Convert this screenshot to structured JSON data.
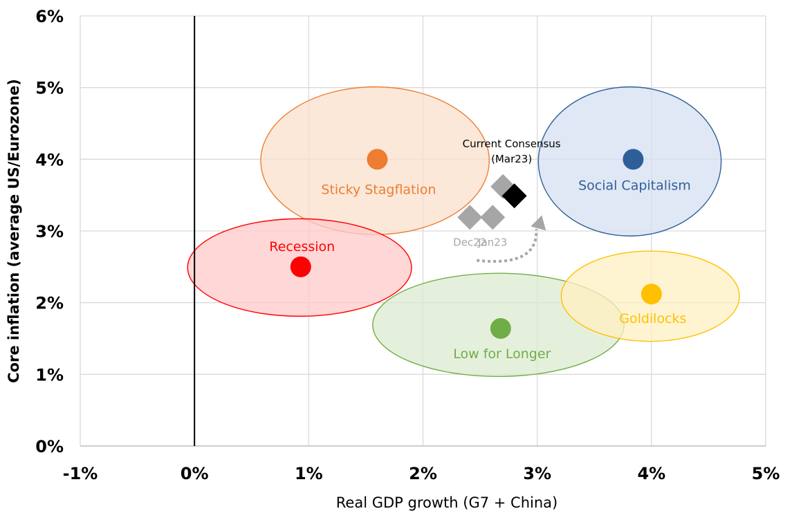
{
  "chart_data": {
    "type": "scatter",
    "title": "",
    "xlabel": "Real GDP growth (G7 + China)",
    "ylabel": "Core inflation (average US/Eurozone)",
    "xlim": [
      -1,
      5
    ],
    "ylim": [
      0,
      6
    ],
    "grid": true,
    "x_ticks": [
      -1,
      0,
      1,
      2,
      3,
      4,
      5
    ],
    "y_ticks": [
      0,
      1,
      2,
      3,
      4,
      5,
      6
    ],
    "x_tick_labels": [
      "-1%",
      "0%",
      "1%",
      "2%",
      "3%",
      "4%",
      "5%"
    ],
    "y_tick_labels": [
      "0%",
      "1%",
      "2%",
      "3%",
      "4%",
      "5%",
      "6%"
    ],
    "scenarios": [
      {
        "name": "Sticky Stagflation",
        "x": 1.6,
        "y": 4.0,
        "range_x": 1.0,
        "range_y": 1.03,
        "center_x": 1.58,
        "center_y": 3.98,
        "color": "#ED7D31",
        "fill": "#FBE0CC"
      },
      {
        "name": "Social Capitalism",
        "x": 3.84,
        "y": 4.0,
        "range_x": 0.8,
        "range_y": 1.04,
        "center_x": 3.81,
        "center_y": 3.97,
        "color": "#2F5F98",
        "fill": "#D6E0F1"
      },
      {
        "name": "Recession",
        "x": 0.93,
        "y": 2.5,
        "range_x": 0.98,
        "range_y": 0.68,
        "center_x": 0.92,
        "center_y": 2.49,
        "color": "#FF0000",
        "fill": "#FFC9C9"
      },
      {
        "name": "Low for Longer",
        "x": 2.68,
        "y": 1.64,
        "range_x": 1.1,
        "range_y": 0.72,
        "center_x": 2.66,
        "center_y": 1.69,
        "color": "#70AD47",
        "fill": "#DCEBD0"
      },
      {
        "name": "Goldilocks",
        "x": 4.0,
        "y": 2.12,
        "range_x": 0.78,
        "range_y": 0.63,
        "center_x": 3.99,
        "center_y": 2.09,
        "color": "#FFC000",
        "fill": "#FFF0C2"
      }
    ],
    "consensus_points": [
      {
        "label": "Dec22",
        "x": 2.41,
        "y": 3.19,
        "color": "#A6A6A6"
      },
      {
        "label": "Jan23",
        "x": 2.61,
        "y": 3.19,
        "color": "#A6A6A6"
      },
      {
        "label": "",
        "x": 2.7,
        "y": 3.62,
        "color": "#A6A6A6"
      },
      {
        "label": "Current Consensus (Mar23)",
        "label_lines": [
          "Current Consensus",
          "(Mar23)"
        ],
        "x": 2.8,
        "y": 3.49,
        "color": "#000000"
      }
    ],
    "annotation_arrow": {
      "from": [
        2.47,
        2.59
      ],
      "to": [
        3.04,
        3.16
      ],
      "style": "dotted",
      "color": "#A6A6A6"
    }
  }
}
